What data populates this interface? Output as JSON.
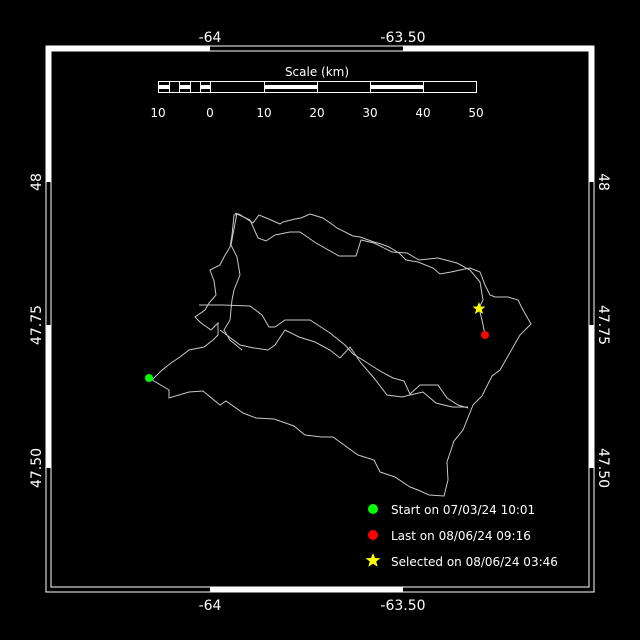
{
  "axes": {
    "x_ticks": [
      "-64",
      "-63.50"
    ],
    "y_ticks": [
      "48",
      "47.75",
      "47.50"
    ]
  },
  "scale_bar": {
    "title": "Scale (km)",
    "labels": [
      "10",
      "0",
      "10",
      "20",
      "30",
      "40",
      "50"
    ]
  },
  "legend": {
    "start": {
      "label": "Start on 07/03/24 10:01",
      "color": "#00ff00"
    },
    "last": {
      "label": "Last on 08/06/24 09:16",
      "color": "#ff0000"
    },
    "selected": {
      "label": "Selected on 08/06/24 03:46",
      "color": "#ffff00",
      "icon": "star-icon"
    }
  },
  "track_color": "#c8c8c8"
}
